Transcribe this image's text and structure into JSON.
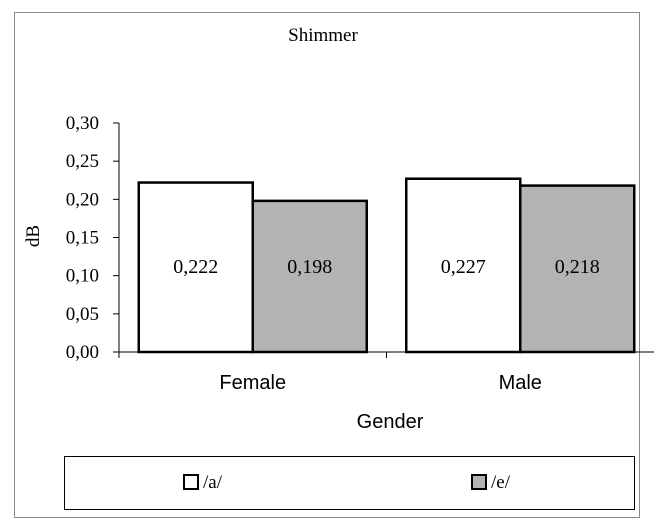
{
  "chart_data": {
    "type": "bar",
    "title": "Shimmer",
    "xlabel": "Gender",
    "ylabel": "dB",
    "categories": [
      "Female",
      "Male"
    ],
    "series": [
      {
        "name": "/a/",
        "values": [
          0.222,
          0.227
        ],
        "labels": [
          "0,222",
          "0,227"
        ],
        "color": "#ffffff"
      },
      {
        "name": "/e/",
        "values": [
          0.198,
          0.218
        ],
        "labels": [
          "0,198",
          "0,218"
        ],
        "color": "#b3b3b3"
      }
    ],
    "ylim": [
      0,
      0.3
    ],
    "yticks": [
      0.0,
      0.05,
      0.1,
      0.15,
      0.2,
      0.25,
      0.3
    ],
    "ytick_labels": [
      "0,00",
      "0,05",
      "0,10",
      "0,15",
      "0,20",
      "0,25",
      "0,30"
    ],
    "grid": false,
    "legend": "bottom"
  }
}
